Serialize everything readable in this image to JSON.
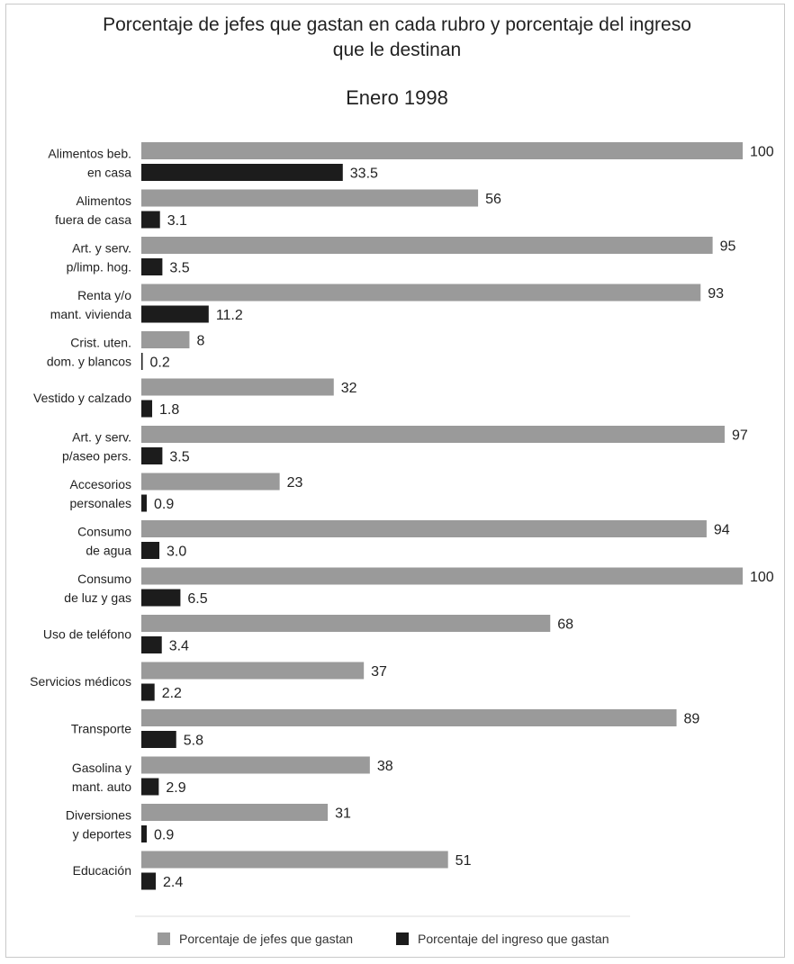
{
  "chart_data": {
    "type": "bar",
    "orientation": "horizontal",
    "title": "Porcentaje de jefes que gastan en cada rubro y porcentaje del ingreso que le destinan",
    "title_lines": [
      "Porcentaje de jefes que gastan en cada rubro y porcentaje del ingreso",
      "que le destinan"
    ],
    "subtitle": "Enero 1998",
    "xlim": [
      0,
      100
    ],
    "grid": false,
    "legend_position": "bottom",
    "categories": [
      [
        "Alimentos beb.",
        "en casa"
      ],
      [
        "Alimentos",
        "fuera de casa"
      ],
      [
        "Art. y serv.",
        "p/limp. hog."
      ],
      [
        "Renta y/o",
        "mant. vivienda"
      ],
      [
        "Crist. uten.",
        "dom. y blancos"
      ],
      [
        "Vestido y calzado"
      ],
      [
        "Art. y serv.",
        "p/aseo pers."
      ],
      [
        "Accesorios",
        "personales"
      ],
      [
        "Consumo",
        "de agua"
      ],
      [
        "Consumo",
        "de luz y gas"
      ],
      [
        "Uso de teléfono"
      ],
      [
        "Servicios médicos"
      ],
      [
        "Transporte"
      ],
      [
        "Gasolina y",
        "mant. auto"
      ],
      [
        "Diversiones",
        "y deportes"
      ],
      [
        "Educación"
      ]
    ],
    "series": [
      {
        "name": "Porcentaje de jefes que gastan",
        "color": "#9a9a9a",
        "values": [
          100,
          56,
          95,
          93,
          8,
          32,
          97,
          23,
          94,
          100,
          68,
          37,
          89,
          38,
          31,
          51
        ],
        "labels": [
          "100",
          "56",
          "95",
          "93",
          "8",
          "32",
          "97",
          "23",
          "94",
          "100",
          "68",
          "37",
          "89",
          "38",
          "31",
          "51"
        ]
      },
      {
        "name": "Porcentaje del ingreso que gastan",
        "color": "#1c1c1c",
        "values": [
          33.5,
          3.1,
          3.5,
          11.2,
          0.2,
          1.8,
          3.5,
          0.9,
          3.0,
          6.5,
          3.4,
          2.2,
          5.8,
          2.9,
          0.9,
          2.4
        ],
        "labels": [
          "33.5",
          "3.1",
          "3.5",
          "11.2",
          "0.2",
          "1.8",
          "3.5",
          "0.9",
          "3.0",
          "6.5",
          "3.4",
          "2.2",
          "5.8",
          "2.9",
          "0.9",
          "2.4"
        ]
      }
    ]
  }
}
